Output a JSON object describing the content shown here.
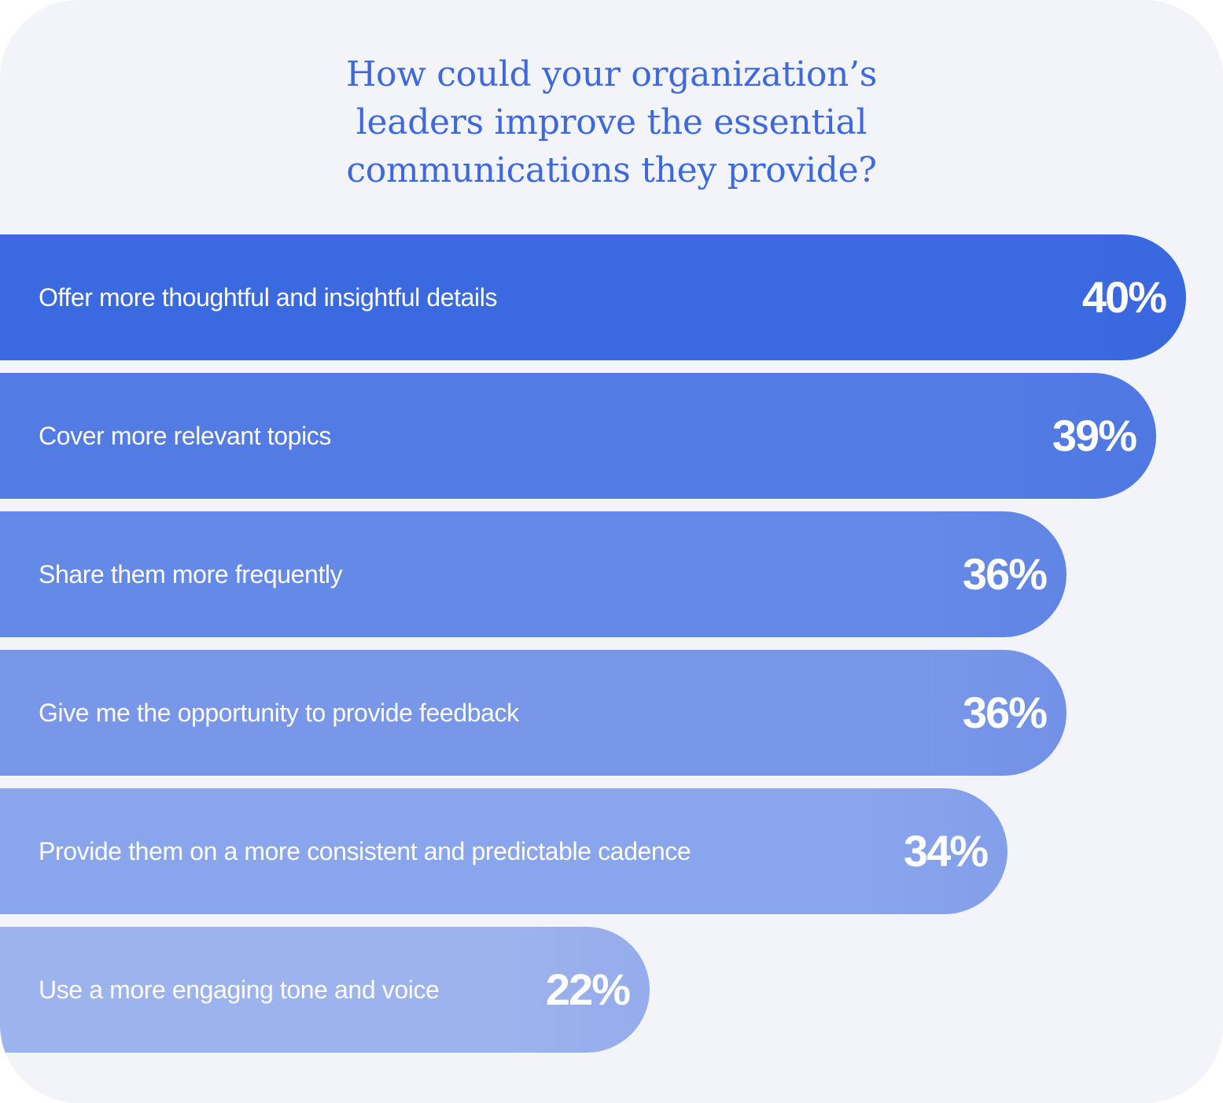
{
  "chart_data": {
    "type": "bar",
    "orientation": "horizontal",
    "title_lines": [
      "How could your organization’s",
      "leaders improve the essential",
      "communications they provide?"
    ],
    "categories": [
      "Offer more thoughtful and insightful details",
      "Cover more relevant topics",
      "Share them more frequently",
      "Give me the opportunity to provide feedback",
      "Provide them on a more consistent and predictable cadence",
      "Use a more engaging tone and voice"
    ],
    "values": [
      40,
      39,
      36,
      36,
      34,
      22
    ],
    "value_labels": [
      "40%",
      "39%",
      "36%",
      "36%",
      "34%",
      "22%"
    ],
    "bar_colors": [
      "#3b6ae0",
      "#527be4",
      "#6589e7",
      "#7897e9",
      "#89a5ec",
      "#9db3ee"
    ],
    "grid": false,
    "legend": "none"
  }
}
